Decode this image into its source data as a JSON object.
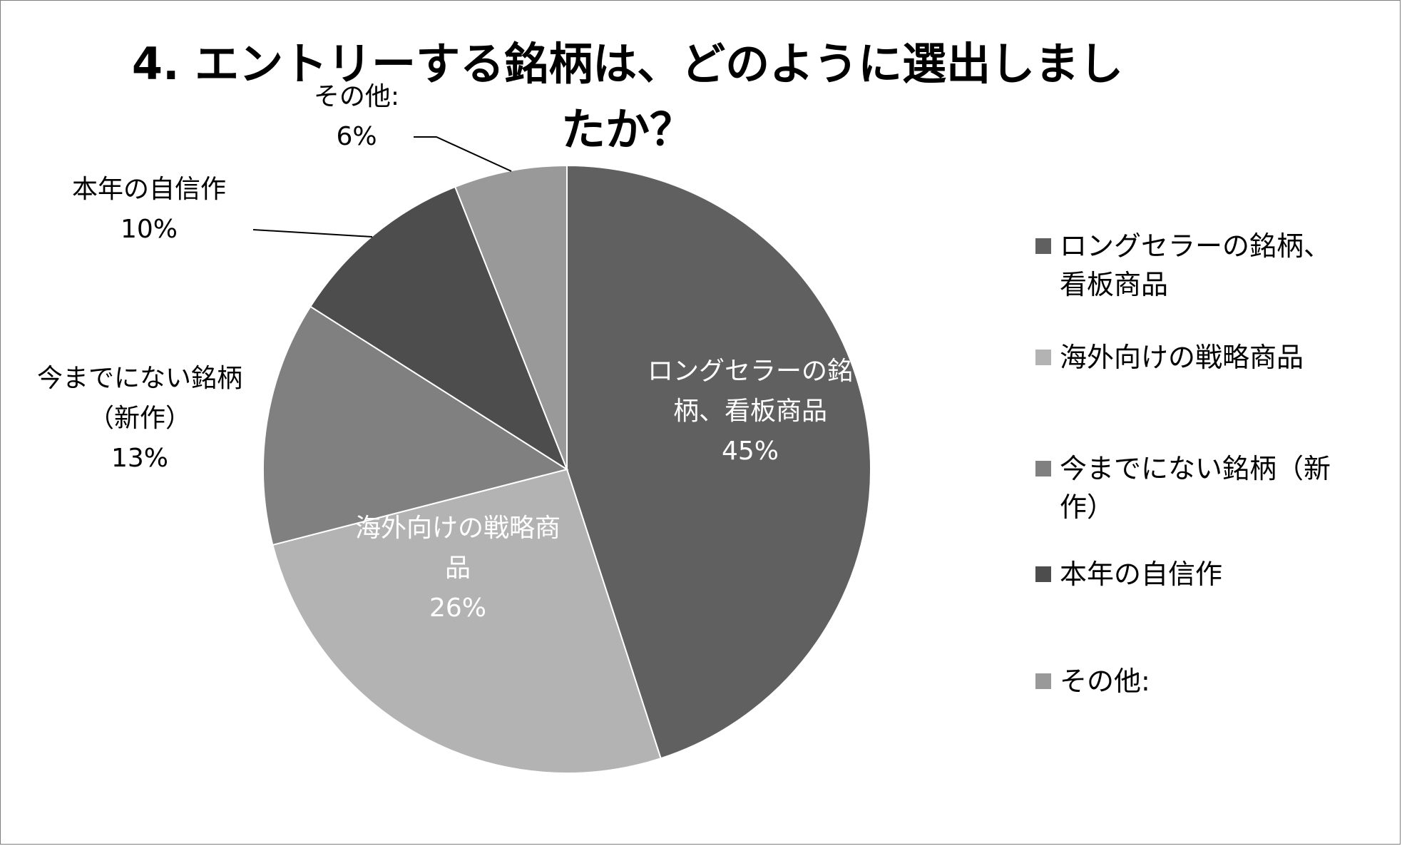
{
  "chart_data": {
    "type": "pie",
    "title": "4.  エントリーする銘柄は、どのように選出しましたか？",
    "slices": [
      {
        "label": "ロングセラーの銘柄、看板商品",
        "value": 45,
        "value_label": "45%",
        "color": "#606060",
        "label_position": "inside",
        "label_lines": [
          "ロングセラーの銘",
          "柄、看板商品"
        ]
      },
      {
        "label": "海外向けの戦略商品",
        "value": 26,
        "value_label": "26%",
        "color": "#b3b3b3",
        "label_position": "inside",
        "label_lines": [
          "海外向けの戦略商",
          "品"
        ]
      },
      {
        "label": "今までにない銘柄（新作）",
        "value": 13,
        "value_label": "13%",
        "color": "#808080",
        "label_position": "outside",
        "label_lines": [
          "今までにない銘柄",
          "（新作）"
        ]
      },
      {
        "label": "本年の自信作",
        "value": 10,
        "value_label": "10%",
        "color": "#4d4d4d",
        "label_position": "outside",
        "label_lines": [
          "本年の自信作"
        ]
      },
      {
        "label": "その他:",
        "value": 6,
        "value_label": "6%",
        "color": "#999999",
        "label_position": "outside",
        "label_lines": [
          "その他:"
        ]
      }
    ],
    "legend": {
      "placement": "right",
      "entries": [
        {
          "lines": [
            "ロングセラーの銘柄、",
            "看板商品"
          ],
          "color": "#606060"
        },
        {
          "lines": [
            "海外向けの戦略商品"
          ],
          "color": "#b3b3b3"
        },
        {
          "lines": [
            "今までにない銘柄（新",
            "作）"
          ],
          "color": "#808080"
        },
        {
          "lines": [
            "本年の自信作"
          ],
          "color": "#4d4d4d"
        },
        {
          "lines": [
            "その他:"
          ],
          "color": "#999999"
        }
      ]
    }
  }
}
